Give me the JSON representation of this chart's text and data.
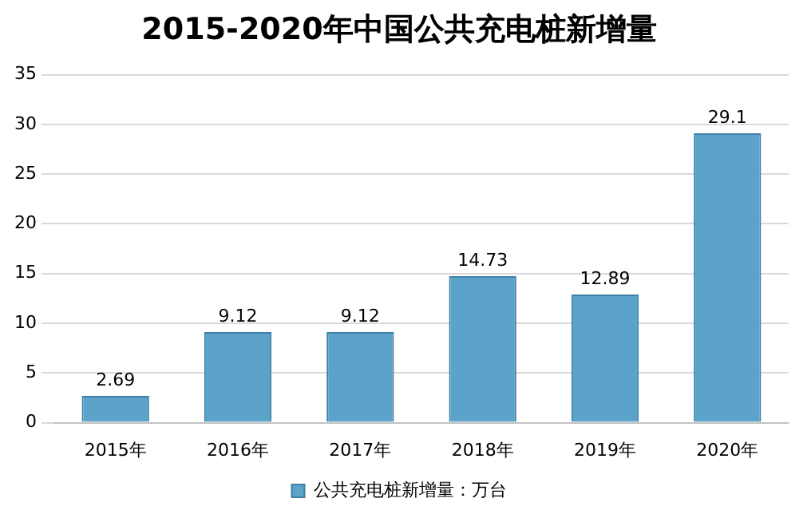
{
  "chart_data": {
    "type": "bar",
    "title": "2015-2020年中国公共充电桩新增量",
    "categories": [
      "2015年",
      "2016年",
      "2017年",
      "2018年",
      "2019年",
      "2020年"
    ],
    "series": [
      {
        "name": "公共充电桩新增量：万台",
        "color": "#5ba3c9",
        "values": [
          2.69,
          9.12,
          9.12,
          14.73,
          12.89,
          29.1
        ]
      }
    ],
    "ylim": [
      0,
      35
    ],
    "yticks": [
      0,
      5,
      10,
      15,
      20,
      25,
      30,
      35
    ],
    "grid": "y",
    "legend": "bottom",
    "data_labels": true
  }
}
